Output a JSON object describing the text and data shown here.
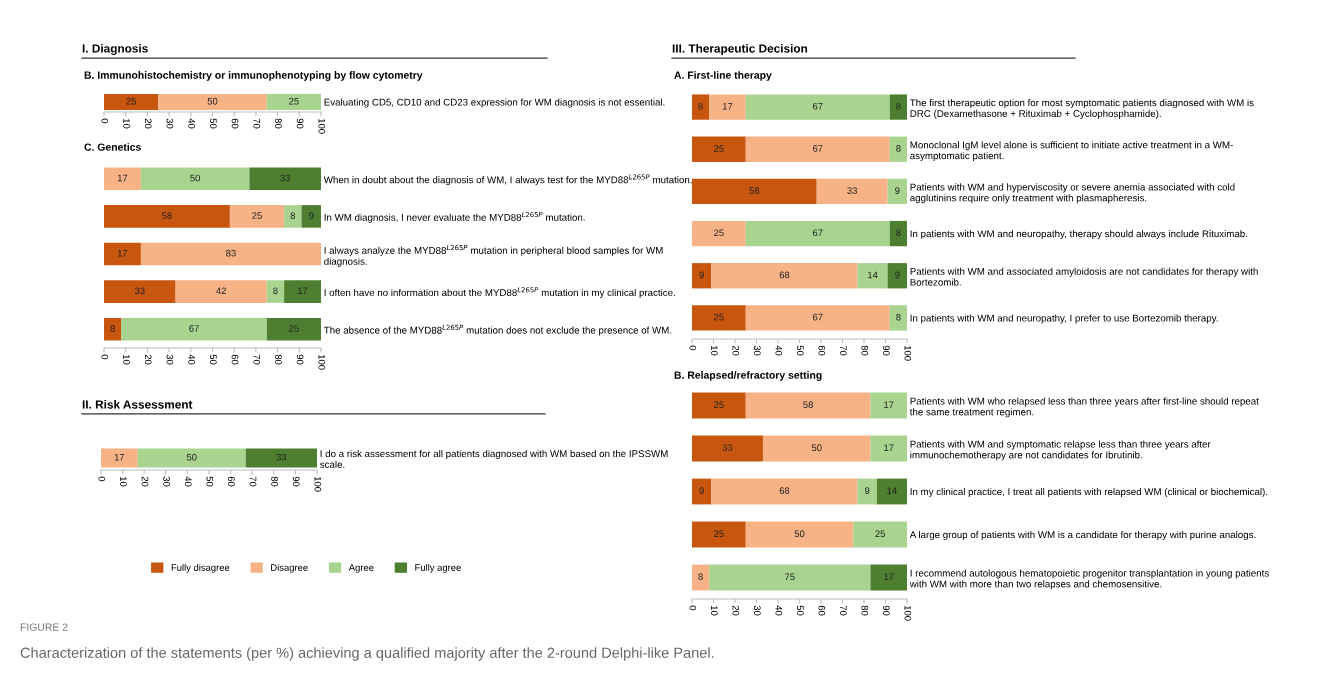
{
  "chart_data": [
    {
      "type": "bar",
      "orientation": "horizontal",
      "stacked": true,
      "title": "I. Diagnosis",
      "subtitle": "B. Immunohistochemistry or immunophenotyping by flow cytometry",
      "categories": [
        "Evaluating CD5, CD10 and CD23 expression for WM diagnosis is not essential."
      ],
      "series": [
        {
          "color": "#c8560e",
          "values": [
            25
          ]
        },
        {
          "color": "#f7b286",
          "values": [
            50
          ]
        },
        {
          "color": "#a8d48f",
          "values": [
            25
          ]
        }
      ],
      "xlim": [
        0,
        100
      ],
      "xticks": [
        0,
        10,
        20,
        30,
        40,
        50,
        60,
        70,
        80,
        90,
        100
      ],
      "data_labels": true,
      "grid": false,
      "legend": false
    },
    {
      "type": "bar",
      "orientation": "horizontal",
      "stacked": true,
      "title": "C. Genetics",
      "categories": [
        "When in doubt about the diagnosis of WM, I always test for the MYD88$^{L265P}$ mutation.",
        "In WM diagnosis, I never evaluate the MYD88$^{L265P}$ mutation.",
        "I always analyze the MYD88$^{L265P}$ mutation in peripheral blood samples for WM\ndiagnosis.",
        "I often have no information about the MYD88$^{L265P}$ mutation in my clinical practice.",
        "The absence of the MYD88$^{L265P}$ mutation does not exclude the presence of WM."
      ],
      "series": [
        {
          "color": "#c8560e",
          "values": [
            null,
            58,
            17,
            33,
            8
          ]
        },
        {
          "color": "#f7b286",
          "values": [
            17,
            25,
            83,
            42,
            null
          ]
        },
        {
          "color": "#a8d48f",
          "values": [
            50,
            8,
            null,
            8,
            67
          ]
        },
        {
          "color": "#4e7f31",
          "values": [
            33,
            9,
            null,
            17,
            25
          ]
        }
      ],
      "xlim": [
        0,
        100
      ],
      "xticks": [
        0,
        10,
        20,
        30,
        40,
        50,
        60,
        70,
        80,
        90,
        100
      ],
      "data_labels": true,
      "grid": false,
      "legend": false
    },
    {
      "type": "bar",
      "orientation": "horizontal",
      "stacked": true,
      "title": "II. Risk Assessment",
      "categories": [
        "I do a risk assessment for all patients diagnosed with WM based on the IPSSWM\nscale."
      ],
      "series": [
        {
          "name": "Fully disagree",
          "color": "#c8560e",
          "values": [
            null
          ]
        },
        {
          "name": "Disagree",
          "color": "#f7b286",
          "values": [
            17
          ]
        },
        {
          "name": "Agree",
          "color": "#a8d48f",
          "values": [
            50
          ]
        },
        {
          "name": "Fully agree",
          "color": "#4e7f31",
          "values": [
            33
          ]
        }
      ],
      "xlim": [
        0,
        100
      ],
      "xticks": [
        0,
        10,
        20,
        30,
        40,
        50,
        60,
        70,
        80,
        90,
        100
      ],
      "data_labels": true,
      "grid": false,
      "legend": "bottom",
      "annotations": [
        "FIGURE 2",
        "Characterization of the statements (per %) achieving a qualified majority after the 2-round Delphi-like Panel."
      ]
    },
    {
      "type": "bar",
      "orientation": "horizontal",
      "stacked": true,
      "title": "III. Therapeutic Decision",
      "subtitle": "A. First-line therapy",
      "categories": [
        "The first therapeutic option for most symptomatic patients diagnosed with WM is\nDRC (Dexamethasone + Rituximab + Cyclophosphamide).",
        "Monoclonal IgM level alone is sufficient to initiate active treatment in a WM-\nasymptomatic patient.",
        "Patients with WM and hyperviscosity or severe anemia associated with cold\nagglutinins require only treatment with plasmapheresis.",
        "In patients with WM and neuropathy, therapy should always include Rituximab.",
        "Patients with WM and associated amyloidosis are not candidates for therapy with\nBortezomib.",
        "In patients with WM and neuropathy, I prefer to use Bortezomib therapy."
      ],
      "series": [
        {
          "color": "#c8560e",
          "values": [
            8,
            25,
            58,
            null,
            9,
            25
          ]
        },
        {
          "color": "#f7b286",
          "values": [
            17,
            67,
            33,
            25,
            68,
            67
          ]
        },
        {
          "color": "#a8d48f",
          "values": [
            67,
            8,
            9,
            67,
            14,
            8
          ]
        },
        {
          "color": "#4e7f31",
          "values": [
            8,
            null,
            null,
            8,
            9,
            null
          ]
        }
      ],
      "xlim": [
        0,
        100
      ],
      "xticks": [
        0,
        10,
        20,
        30,
        40,
        50,
        60,
        70,
        80,
        90,
        100
      ],
      "data_labels": true,
      "grid": false,
      "legend": false
    },
    {
      "type": "bar",
      "orientation": "horizontal",
      "stacked": true,
      "title": "B. Relapsed/refractory setting",
      "categories": [
        "Patients with WM who relapsed less than three years after first-line should repeat\nthe same treatment regimen.",
        "Patients with WM and symptomatic relapse less than three years after\nimmunochemotherapy are not candidates for Ibrutinib.",
        "In my clinical practice, I treat all patients with relapsed WM (clinical or biochemical).",
        "A large group of patients with WM is a candidate for therapy with purine analogs.",
        "I recommend autologous hematopoietic progenitor transplantation in young patients\nwith WM with more than two relapses and chemosensitive."
      ],
      "series": [
        {
          "color": "#c8560e",
          "values": [
            25,
            33,
            9,
            25,
            null
          ]
        },
        {
          "color": "#f7b286",
          "values": [
            58,
            50,
            68,
            50,
            8
          ]
        },
        {
          "color": "#a8d48f",
          "values": [
            17,
            17,
            9,
            25,
            75
          ]
        },
        {
          "color": "#4e7f31",
          "values": [
            null,
            null,
            14,
            null,
            17
          ]
        }
      ],
      "xlim": [
        0,
        100
      ],
      "xticks": [
        0,
        10,
        20,
        30,
        40,
        50,
        60,
        70,
        80,
        90,
        100
      ],
      "data_labels": true,
      "grid": false,
      "legend": false
    }
  ]
}
